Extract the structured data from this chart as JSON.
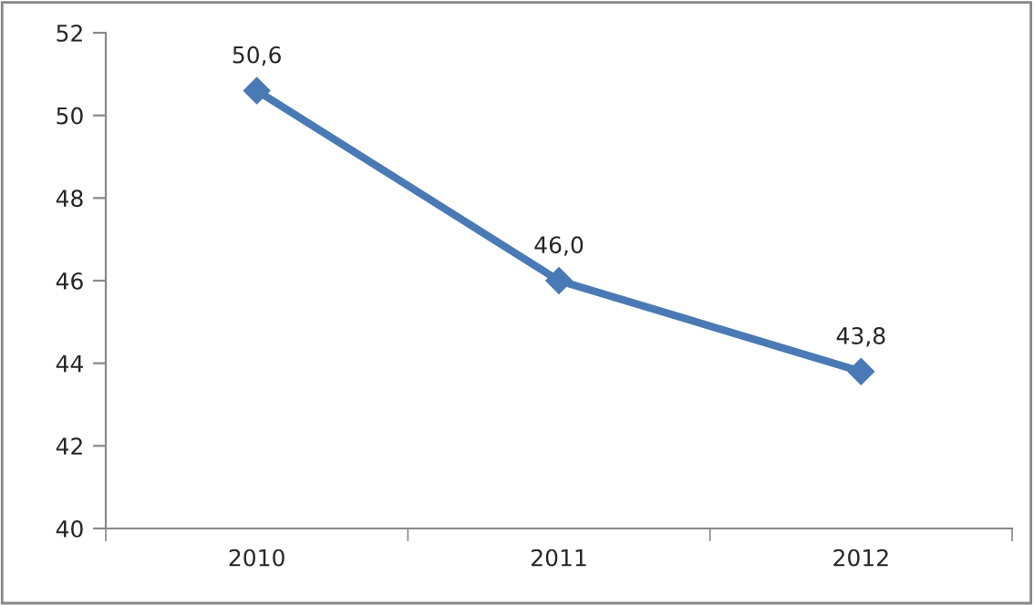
{
  "chart_data": {
    "type": "line",
    "categories": [
      "2010",
      "2011",
      "2012"
    ],
    "series": [
      {
        "color": "#4a7ab5",
        "values": [
          50.6,
          46.0,
          43.8
        ],
        "value_labels": [
          "50,6",
          "46,0",
          "43,8"
        ]
      }
    ],
    "ylim": [
      40,
      52
    ],
    "yticks": [
      40,
      42,
      44,
      46,
      48,
      50,
      52
    ],
    "grid": false,
    "legend": false,
    "marker": "diamond",
    "line_style": "solid"
  }
}
